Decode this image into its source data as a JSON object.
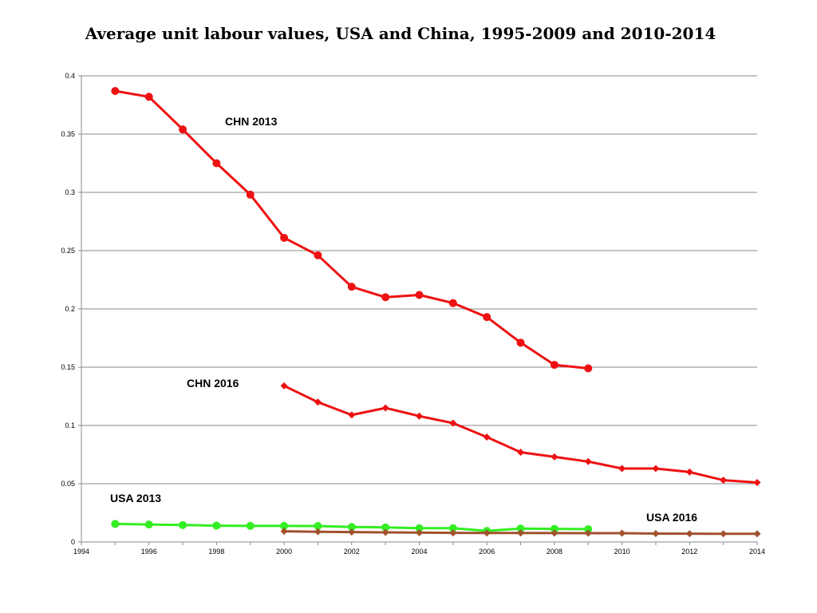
{
  "chart_data": {
    "type": "line",
    "title": "Average unit labour values, USA and China, 1995-2009 and 2010-2014",
    "xlabel": "",
    "ylabel": "",
    "xlim": [
      1994,
      2014
    ],
    "ylim": [
      0,
      0.4
    ],
    "grid": true,
    "x_ticks": [
      "1994",
      "1996",
      "1998",
      "2000",
      "2002",
      "2004",
      "2006",
      "2008",
      "2010",
      "2012",
      "2014"
    ],
    "y_ticks": [
      "0",
      "0.05",
      "0.1",
      "0.15",
      "0.2",
      "0.25",
      "0.3",
      "0.35",
      "0.4"
    ],
    "series": [
      {
        "name": "CHN 2013",
        "color": "#ee1111",
        "marker": "circle",
        "x": [
          1995,
          1996,
          1997,
          1998,
          1999,
          2000,
          2001,
          2002,
          2003,
          2004,
          2005,
          2006,
          2007,
          2008,
          2009
        ],
        "values": [
          0.387,
          0.382,
          0.354,
          0.325,
          0.298,
          0.261,
          0.246,
          0.219,
          0.21,
          0.212,
          0.205,
          0.193,
          0.171,
          0.152,
          0.149
        ]
      },
      {
        "name": "CHN 2016",
        "color": "#ee1111",
        "marker": "diamond",
        "x": [
          2000,
          2001,
          2002,
          2003,
          2004,
          2005,
          2006,
          2007,
          2008,
          2009,
          2010,
          2011,
          2012,
          2013,
          2014
        ],
        "values": [
          0.134,
          0.12,
          0.109,
          0.115,
          0.108,
          0.102,
          0.09,
          0.077,
          0.073,
          0.069,
          0.063,
          0.063,
          0.06,
          0.053,
          0.051
        ]
      },
      {
        "name": "USA 2013",
        "color": "#33ee22",
        "marker": "circle",
        "x": [
          1995,
          1996,
          1997,
          1998,
          1999,
          2000,
          2001,
          2002,
          2003,
          2004,
          2005,
          2006,
          2007,
          2008,
          2009
        ],
        "values": [
          0.0155,
          0.015,
          0.0145,
          0.014,
          0.0138,
          0.0138,
          0.0137,
          0.0128,
          0.0125,
          0.0118,
          0.0118,
          0.0095,
          0.0115,
          0.0112,
          0.011
        ]
      },
      {
        "name": "USA 2016",
        "color": "#a0522d",
        "marker": "diamond",
        "x": [
          2000,
          2001,
          2002,
          2003,
          2004,
          2005,
          2006,
          2007,
          2008,
          2009,
          2010,
          2011,
          2012,
          2013,
          2014
        ],
        "values": [
          0.0092,
          0.0088,
          0.0085,
          0.0082,
          0.008,
          0.0078,
          0.0077,
          0.0077,
          0.0076,
          0.0075,
          0.0075,
          0.0072,
          0.0071,
          0.007,
          0.007
        ]
      }
    ],
    "series_labels": [
      "CHN 2013",
      "CHN 2016",
      "USA 2013",
      "USA 2016"
    ]
  }
}
